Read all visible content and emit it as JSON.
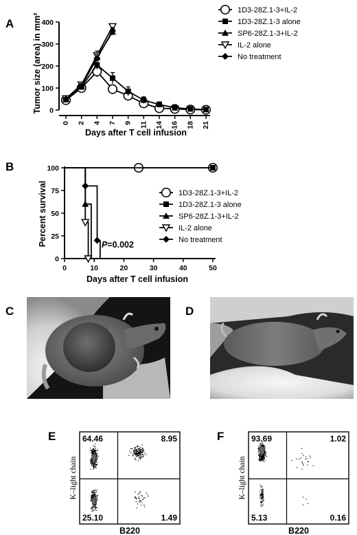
{
  "panels": {
    "A": "A",
    "B": "B",
    "C": "C",
    "D": "D",
    "E": "E",
    "F": "F"
  },
  "chart_data": [
    {
      "id": "A",
      "type": "line",
      "xlabel": "Days after T cell infusion",
      "ylabel": "Tumor size (area) in mm²",
      "categories": [
        "0",
        "2",
        "4",
        "7",
        "9",
        "11",
        "14",
        "16",
        "18",
        "21"
      ],
      "ylim": [
        0,
        400
      ],
      "yticks": [
        0,
        100,
        200,
        300,
        400
      ],
      "series": [
        {
          "name": "1D3-28Z.1-3+IL-2",
          "marker": "circle-open",
          "values": [
            45,
            100,
            175,
            95,
            65,
            30,
            8,
            5,
            2,
            1
          ],
          "err": [
            8,
            10,
            25,
            15,
            10,
            8,
            4,
            3,
            2,
            1
          ]
        },
        {
          "name": "1D3-28Z.1-3 alone",
          "marker": "square",
          "values": [
            48,
            105,
            205,
            145,
            85,
            45,
            25,
            10,
            5,
            2
          ],
          "err": [
            8,
            12,
            20,
            25,
            20,
            15,
            12,
            6,
            4,
            2
          ]
        },
        {
          "name": "SP6-28Z.1-3+IL-2",
          "marker": "triangle-up",
          "values": [
            50,
            110,
            240,
            355,
            null,
            null,
            null,
            null,
            null,
            null
          ],
          "err": [
            6,
            10,
            20,
            15,
            0,
            0,
            0,
            0,
            0,
            0
          ]
        },
        {
          "name": "IL-2 alone",
          "marker": "triangle-down-open",
          "values": [
            52,
            115,
            248,
            380,
            null,
            null,
            null,
            null,
            null,
            null
          ],
          "err": [
            6,
            10,
            20,
            10,
            0,
            0,
            0,
            0,
            0,
            0
          ]
        },
        {
          "name": "No treatment",
          "marker": "diamond",
          "values": [
            50,
            110,
            235,
            360,
            null,
            null,
            null,
            null,
            null,
            null
          ],
          "err": [
            6,
            10,
            18,
            15,
            0,
            0,
            0,
            0,
            0,
            0
          ]
        }
      ]
    },
    {
      "id": "B",
      "type": "line",
      "xlabel": "Days after T cell infusion",
      "ylabel": "Percent survival",
      "xlim": [
        0,
        50
      ],
      "ylim": [
        0,
        100
      ],
      "xticks": [
        0,
        10,
        20,
        30,
        40,
        50
      ],
      "yticks": [
        0,
        25,
        50,
        75,
        100
      ],
      "annotation_p": "P",
      "annotation_value": "=0.002",
      "series": [
        {
          "name": "1D3-28Z.1-3+IL-2",
          "marker": "circle-open",
          "steps": [
            [
              0,
              100
            ],
            [
              50,
              100
            ]
          ],
          "markers": [
            [
              25,
              100
            ],
            [
              50,
              100
            ]
          ]
        },
        {
          "name": "1D3-28Z.1-3 alone",
          "marker": "square",
          "steps": [
            [
              0,
              100
            ],
            [
              50,
              100
            ]
          ],
          "markers": [
            [
              50,
              100
            ]
          ]
        },
        {
          "name": "SP6-28Z.1-3+IL-2",
          "marker": "triangle-up",
          "steps": [
            [
              0,
              100
            ],
            [
              7,
              100
            ],
            [
              7,
              60
            ],
            [
              9,
              60
            ],
            [
              9,
              0
            ]
          ],
          "markers": [
            [
              7,
              60
            ]
          ]
        },
        {
          "name": "IL-2 alone",
          "marker": "triangle-down-open",
          "steps": [
            [
              0,
              100
            ],
            [
              7,
              100
            ],
            [
              7,
              40
            ],
            [
              8,
              40
            ],
            [
              8,
              0
            ]
          ],
          "markers": [
            [
              7,
              40
            ],
            [
              8,
              0
            ]
          ]
        },
        {
          "name": "No treatment",
          "marker": "diamond",
          "steps": [
            [
              0,
              100
            ],
            [
              7,
              100
            ],
            [
              7,
              80
            ],
            [
              11,
              80
            ],
            [
              11,
              20
            ],
            [
              12,
              20
            ],
            [
              12,
              0
            ]
          ],
          "markers": [
            [
              7,
              80
            ],
            [
              11,
              20
            ]
          ]
        }
      ]
    },
    {
      "id": "E",
      "type": "scatter",
      "xlabel": "B220",
      "ylabel": "K–light chain",
      "quadrants": {
        "top_left": "64.46",
        "top_right": "8.95",
        "bottom_left": "25.10",
        "bottom_right": "1.49"
      }
    },
    {
      "id": "F",
      "type": "scatter",
      "xlabel": "B220",
      "ylabel": "K–light chain",
      "quadrants": {
        "top_left": "93.69",
        "top_right": "1.02",
        "bottom_left": "5.13",
        "bottom_right": "0.16"
      }
    }
  ],
  "colors": {
    "ink": "#000000",
    "photo_bg": "#1a1a1a",
    "fur": "#6a6a6a",
    "glove": "#e8e8e8"
  }
}
